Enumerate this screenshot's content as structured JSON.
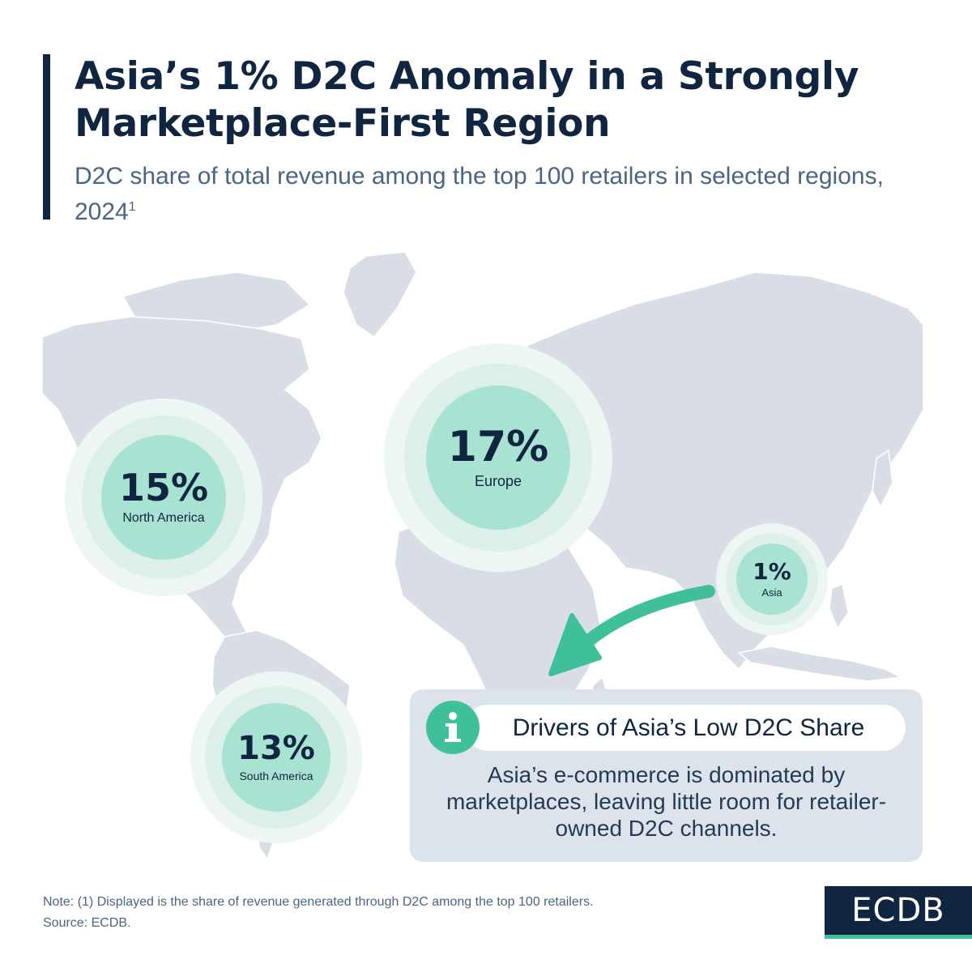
{
  "header": {
    "title": "Asia’s 1% D2C Anomaly in a Strongly Marketplace-First Region",
    "subtitle": "D2C share of total revenue among the top 100 retailers in selected regions, 2024",
    "subtitle_footnote": "1"
  },
  "chart_data": {
    "type": "bubble-map",
    "categories": [
      "North America",
      "Europe",
      "Asia",
      "South America"
    ],
    "values": [
      15,
      17,
      1,
      13
    ],
    "labels": [
      "15%",
      "17%",
      "1%",
      "13%"
    ],
    "unit": "%",
    "colors": {
      "bubble_outer": "#eef6f4",
      "bubble_middle": "#dcefe9",
      "bubble_core": "#a8e2d2",
      "map_land": "#d9dee6",
      "arrow": "#3fbf9a"
    }
  },
  "info_box": {
    "icon": "info-icon",
    "title": "Drivers of Asia’s Low D2C Share",
    "body": "Asia’s e-commerce is dominated by marketplaces, leaving little room for retailer-owned D2C channels."
  },
  "footer": {
    "note": "Note: (1) Displayed is the share of revenue generated through D2C among the top 100 retailers.",
    "source": "Source: ECDB.",
    "logo": "ECDB"
  },
  "colors": {
    "navy": "#0f2540",
    "subtitle": "#4a6583",
    "accent": "#3fbf9a",
    "box": "#dde3ea"
  }
}
